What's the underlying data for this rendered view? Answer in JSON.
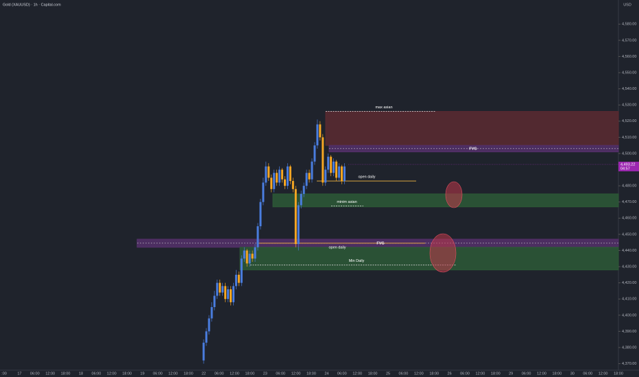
{
  "chart_data": {
    "type": "candlestick",
    "title": "Gold (XAUUSD) · 1h · Capital.com",
    "currency": "USD",
    "up_color": "#4a7ddf",
    "down_color": "#f5a623",
    "open": [
      4372,
      4383,
      4390,
      4398,
      4405,
      4412,
      4420,
      4414,
      4418,
      4410,
      4416,
      4408,
      4418,
      4425,
      4420,
      4435,
      4440,
      4432,
      4438,
      4435,
      4442,
      4455,
      4470,
      4482,
      4492,
      4485,
      4478,
      4488,
      4482,
      4490,
      4484,
      4480,
      4492,
      4483,
      4478,
      4444,
      4468,
      4475,
      4480,
      4488,
      4484,
      4495,
      4505,
      4518,
      4510,
      4482,
      4490,
      4498,
      4488,
      4495,
      4485,
      4492,
      4483
    ],
    "close": [
      4383,
      4390,
      4398,
      4405,
      4412,
      4420,
      4414,
      4418,
      4410,
      4416,
      4408,
      4418,
      4425,
      4420,
      4435,
      4440,
      4432,
      4438,
      4435,
      4442,
      4455,
      4470,
      4482,
      4492,
      4485,
      4478,
      4488,
      4482,
      4490,
      4484,
      4480,
      4492,
      4483,
      4478,
      4444,
      4468,
      4475,
      4480,
      4488,
      4484,
      4495,
      4505,
      4518,
      4510,
      4482,
      4490,
      4498,
      4488,
      4495,
      4485,
      4492,
      4483,
      4492
    ],
    "high": [
      4385,
      4392,
      4400,
      4408,
      4415,
      4422,
      4422,
      4420,
      4420,
      4418,
      4418,
      4420,
      4428,
      4427,
      4437,
      4442,
      4441,
      4440,
      4440,
      4444,
      4457,
      4472,
      4485,
      4495,
      4494,
      4487,
      4490,
      4490,
      4492,
      4491,
      4486,
      4494,
      4493,
      4485,
      4480,
      4470,
      4477,
      4482,
      4490,
      4490,
      4497,
      4507,
      4521,
      4520,
      4512,
      4492,
      4500,
      4499,
      4497,
      4496,
      4494,
      4493,
      4494
    ],
    "low": [
      4370,
      4381,
      4388,
      4396,
      4403,
      4410,
      4412,
      4412,
      4408,
      4408,
      4406,
      4406,
      4416,
      4418,
      4418,
      4433,
      4430,
      4430,
      4433,
      4433,
      4440,
      4453,
      4468,
      4480,
      4483,
      4476,
      4476,
      4480,
      4480,
      4482,
      4478,
      4478,
      4481,
      4476,
      4442,
      4440,
      4466,
      4473,
      4478,
      4482,
      4482,
      4493,
      4503,
      4508,
      4480,
      4480,
      4488,
      4486,
      4486,
      4483,
      4483,
      4481,
      4481
    ],
    "ylim": [
      4366,
      4589
    ],
    "yticks": [
      {
        "value": 4370,
        "label": "4,370.00"
      },
      {
        "value": 4380,
        "label": "4,380.00"
      },
      {
        "value": 4390,
        "label": "4,390.00"
      },
      {
        "value": 4400,
        "label": "4,400.00"
      },
      {
        "value": 4410,
        "label": "4,410.00"
      },
      {
        "value": 4420,
        "label": "4,420.00"
      },
      {
        "value": 4430,
        "label": "4,430.00"
      },
      {
        "value": 4440,
        "label": "4,440.00"
      },
      {
        "value": 4450,
        "label": "4,450.00"
      },
      {
        "value": 4460,
        "label": "4,460.00"
      },
      {
        "value": 4470,
        "label": "4,470.00"
      },
      {
        "value": 4480,
        "label": "4,480.00"
      },
      {
        "value": 4490,
        "label": "4,490.00"
      },
      {
        "value": 4500,
        "label": "4,500.00"
      },
      {
        "value": 4510,
        "label": "4,510.00"
      },
      {
        "value": 4520,
        "label": "4,520.00"
      },
      {
        "value": 4530,
        "label": "4,530.00"
      },
      {
        "value": 4540,
        "label": "4,540.00"
      },
      {
        "value": 4550,
        "label": "4,550.00"
      },
      {
        "value": 4560,
        "label": "4,560.00"
      },
      {
        "value": 4570,
        "label": "4,570.00"
      },
      {
        "value": 4580,
        "label": "4,580.00"
      }
    ],
    "xlabels": [
      ":00",
      "17",
      "06:00",
      "12:00",
      "18:00",
      "18",
      "06:00",
      "12:00",
      "18:00",
      "19",
      "06:00",
      "12:00",
      "18:00",
      "22",
      "06:00",
      "12:00",
      "18:00",
      "23",
      "06:00",
      "12:00",
      "18:00",
      "24",
      "06:00",
      "12:00",
      "18:00",
      "25",
      "06:00",
      "12:00",
      "18:00",
      "26",
      "06:00",
      "12:00",
      "18:00",
      "29",
      "06:00",
      "12:00",
      "18:00",
      "30",
      "06:00",
      "12:00",
      "18:00"
    ],
    "zones": [
      {
        "from": 4505,
        "to": 4526,
        "color": "#5c2a31"
      },
      {
        "from": 4501,
        "to": 4505,
        "color": "#55306b",
        "label": "FVG"
      },
      {
        "from": 4467,
        "to": 4475,
        "color": "#2d5937"
      },
      {
        "from": 4442,
        "to": 4447,
        "color": "#55306b",
        "label": "FVG"
      },
      {
        "from": 4428,
        "to": 4442,
        "color": "#2d5937"
      }
    ],
    "lines": [
      {
        "price": 4526,
        "label": "max asian",
        "color": "#d0d0d0",
        "dashed": true
      },
      {
        "price": 4483,
        "label": "open daily",
        "color": "#f5b942",
        "dashed": false
      },
      {
        "price": 4467.5,
        "label": "minim asian",
        "color": "#d0d0d0",
        "dashed": true
      },
      {
        "price": 4444.5,
        "label": "open daily",
        "color": "#f5b942",
        "dashed": false
      },
      {
        "price": 4431,
        "label": "Min Daily",
        "color": "#d0d0d0",
        "dashed": true
      }
    ],
    "last_price": {
      "value": 4493.22,
      "label": "4,493.22",
      "countdown": "04:57",
      "color": "#9c27b0"
    }
  }
}
